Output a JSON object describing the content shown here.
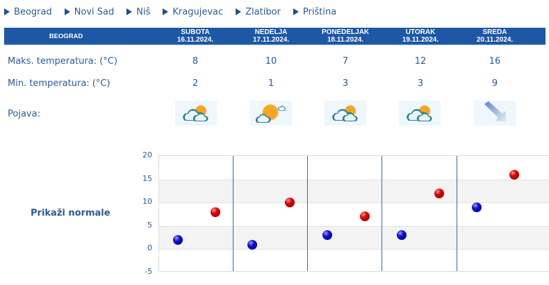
{
  "nav": {
    "cities": [
      "Beograd",
      "Novi Sad",
      "Niš",
      "Kragujevac",
      "Zlatibor",
      "Priština"
    ]
  },
  "header": {
    "city": "BEOGRAD",
    "days": [
      {
        "name": "SUBOTA",
        "date": "16.11.2024."
      },
      {
        "name": "NEDELJA",
        "date": "17.11.2024."
      },
      {
        "name": "PONEDELJAK",
        "date": "18.11.2024."
      },
      {
        "name": "UTORAK",
        "date": "19.11.2024."
      },
      {
        "name": "SREDA",
        "date": "20.11.2024."
      }
    ]
  },
  "rows": {
    "max_label": "Maks. temperatura: (°C)",
    "min_label": "Min. temperatura: (°C)",
    "phenomenon_label": "Pojava:",
    "max": [
      "8",
      "10",
      "7",
      "12",
      "16"
    ],
    "min": [
      "2",
      "1",
      "3",
      "3",
      "9"
    ],
    "icons": [
      "partly-cloudy-icon",
      "mostly-sunny-icon",
      "partly-cloudy-icon",
      "partly-cloudy-icon",
      "wind-arrow-icon"
    ]
  },
  "normals_link": "Prikaži normale",
  "colors": {
    "header_bg": "#1d57a6",
    "text": "#2a5a96",
    "max_dot": "#e00000",
    "min_dot": "#1010d8"
  },
  "chart_data": {
    "type": "scatter",
    "title": "",
    "xlabel": "",
    "ylabel": "",
    "categories": [
      "16.11.2024.",
      "17.11.2024.",
      "18.11.2024.",
      "19.11.2024.",
      "20.11.2024."
    ],
    "series": [
      {
        "name": "Min. temperatura",
        "color": "#1010d8",
        "values": [
          2,
          1,
          3,
          3,
          9
        ]
      },
      {
        "name": "Maks. temperatura",
        "color": "#e00000",
        "values": [
          8,
          10,
          7,
          12,
          16
        ]
      }
    ],
    "yticks": [
      "20",
      "15",
      "10",
      "5",
      "0",
      "-5"
    ],
    "ylim": [
      -5,
      20
    ],
    "grid": true,
    "legend": "none"
  }
}
